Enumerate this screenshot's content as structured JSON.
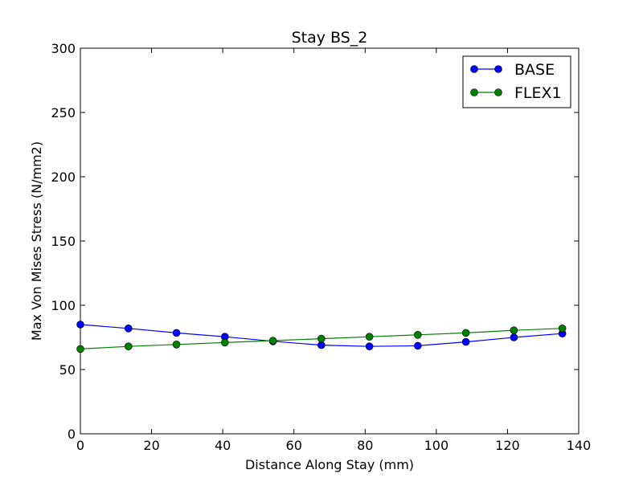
{
  "chart_data": {
    "type": "line",
    "title": "Stay BS_2",
    "xlabel": "Distance Along Stay (mm)",
    "ylabel": "Max Von Mises Stress (N/mm2)",
    "xlim": [
      0,
      140
    ],
    "ylim": [
      0,
      300
    ],
    "x_ticks": [
      "0",
      "20",
      "40",
      "60",
      "80",
      "100",
      "120",
      "140"
    ],
    "y_ticks": [
      "0",
      "50",
      "100",
      "150",
      "200",
      "250",
      "300"
    ],
    "grid": false,
    "legend_position": "top-right",
    "series": [
      {
        "name": "BASE",
        "color": "#0000ff",
        "marker": "circle",
        "x": [
          0,
          13.5,
          27,
          40.6,
          54.1,
          67.7,
          81.2,
          94.8,
          108.3,
          121.8,
          135.4
        ],
        "y": [
          85,
          82,
          78.5,
          75.5,
          72,
          69,
          68,
          68.5,
          71.5,
          75,
          78
        ]
      },
      {
        "name": "FLEX1",
        "color": "#008000",
        "marker": "circle",
        "x": [
          0,
          13.5,
          27,
          40.6,
          54.1,
          67.7,
          81.2,
          94.8,
          108.3,
          121.8,
          135.4
        ],
        "y": [
          66,
          68,
          69.5,
          71,
          72.5,
          74,
          75.5,
          77,
          78.5,
          80.5,
          82
        ]
      }
    ]
  }
}
